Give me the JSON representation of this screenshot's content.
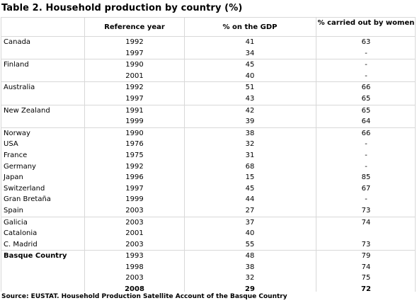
{
  "title": "Table 2.  Household production by country (%)",
  "headers": {
    "country": "",
    "year": "Reference year",
    "gdp": "% on the GDP",
    "women": "% carried out by women"
  },
  "rows": [
    {
      "country": "Canada",
      "year": "1992",
      "gdp": "41",
      "women": "63",
      "sep": true
    },
    {
      "country": "",
      "year": "1997",
      "gdp": "34",
      "women": "-"
    },
    {
      "country": "Finland",
      "year": "1990",
      "gdp": "45",
      "women": "-",
      "sep": true
    },
    {
      "country": "",
      "year": "2001",
      "gdp": "40",
      "women": "-"
    },
    {
      "country": "Australia",
      "year": "1992",
      "gdp": "51",
      "women": "66",
      "sep": true
    },
    {
      "country": "",
      "year": "1997",
      "gdp": "43",
      "women": "65"
    },
    {
      "country": "New Zealand",
      "year": "1991",
      "gdp": "42",
      "women": "65",
      "sep": true
    },
    {
      "country": "",
      "year": "1999",
      "gdp": "39",
      "women": "64"
    },
    {
      "country": "Norway",
      "year": "1990",
      "gdp": "38",
      "women": "66",
      "sep": true
    },
    {
      "country": "USA",
      "year": "1976",
      "gdp": "32",
      "women": "-"
    },
    {
      "country": "France",
      "year": "1975",
      "gdp": "31",
      "women": "-"
    },
    {
      "country": "Germany",
      "year": "1992",
      "gdp": "68",
      "women": "-"
    },
    {
      "country": "Japan",
      "year": "1996",
      "gdp": "15",
      "women": "85"
    },
    {
      "country": "Switzerland",
      "year": "1997",
      "gdp": "45",
      "women": "67"
    },
    {
      "country": "Gran Bretaña",
      "year": "1999",
      "gdp": "44",
      "women": "-"
    },
    {
      "country": "Spain",
      "year": "2003",
      "gdp": "27",
      "women": "73"
    },
    {
      "country": "Galicia",
      "year": "2003",
      "gdp": "37",
      "women": "74",
      "sep": true
    },
    {
      "country": "Catalonia",
      "year": "2001",
      "gdp": "40",
      "women": ""
    },
    {
      "country": "C. Madrid",
      "year": "2003",
      "gdp": "55",
      "women": "73"
    },
    {
      "country": "Basque Country",
      "year": "1993",
      "gdp": "48",
      "women": "79",
      "sep": true,
      "bold_country": true
    },
    {
      "country": "",
      "year": "1998",
      "gdp": "38",
      "women": "74"
    },
    {
      "country": "",
      "year": "2003",
      "gdp": "32",
      "women": "75"
    },
    {
      "country": "",
      "year": "2008",
      "gdp": "29",
      "women": "72",
      "bold": true
    }
  ],
  "source": "Source: EUSTAT. Household Production Satellite Account of the Basque Country"
}
